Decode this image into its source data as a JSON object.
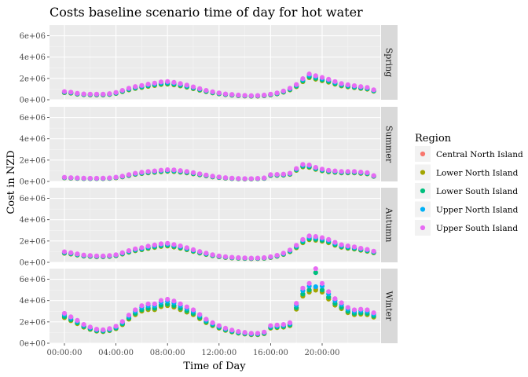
{
  "chart_data": {
    "type": "scatter",
    "title": "Costs baseline scenario time of day for hot water",
    "xlabel": "Time of Day",
    "ylabel": "Cost in NZD",
    "x_ticks": [
      "00:00:00",
      "04:00:00",
      "08:00:00",
      "12:00:00",
      "16:00:00",
      "20:00:00"
    ],
    "y_ticks": [
      "0e+00",
      "2e+06",
      "4e+06",
      "6e+06"
    ],
    "ylim": [
      0,
      7000000
    ],
    "grid": true,
    "legend": {
      "title": "Region",
      "position": "right"
    },
    "series": [
      {
        "name": "Central North Island",
        "color": "#F8766D"
      },
      {
        "name": "Lower North Island",
        "color": "#A3A500"
      },
      {
        "name": "Lower South Island",
        "color": "#00BF7D"
      },
      {
        "name": "Upper North Island",
        "color": "#00B0F6"
      },
      {
        "name": "Upper South Island",
        "color": "#E76BF3"
      }
    ],
    "facets": [
      {
        "label": "Spring",
        "values": [
          0.7,
          0.65,
          0.55,
          0.5,
          0.48,
          0.48,
          0.48,
          0.52,
          0.62,
          0.8,
          0.98,
          1.12,
          1.22,
          1.33,
          1.42,
          1.52,
          1.55,
          1.48,
          1.38,
          1.25,
          1.1,
          0.95,
          0.8,
          0.68,
          0.58,
          0.5,
          0.45,
          0.4,
          0.37,
          0.35,
          0.36,
          0.4,
          0.48,
          0.58,
          0.75,
          0.98,
          1.3,
          1.8,
          2.2,
          2.05,
          1.9,
          1.75,
          1.55,
          1.38,
          1.28,
          1.2,
          1.12,
          1.05,
          0.85
        ]
      },
      {
        "label": "Summer",
        "values": [
          0.35,
          0.32,
          0.3,
          0.28,
          0.27,
          0.27,
          0.28,
          0.3,
          0.36,
          0.45,
          0.58,
          0.7,
          0.78,
          0.85,
          0.9,
          0.96,
          1.0,
          0.98,
          0.92,
          0.85,
          0.75,
          0.65,
          0.55,
          0.45,
          0.38,
          0.32,
          0.28,
          0.25,
          0.24,
          0.24,
          0.26,
          0.3,
          0.58,
          0.6,
          0.62,
          0.7,
          1.1,
          1.45,
          1.4,
          1.2,
          1.05,
          0.95,
          0.9,
          0.85,
          0.85,
          0.85,
          0.8,
          0.75,
          0.5
        ]
      },
      {
        "label": "Autumn",
        "values": [
          0.9,
          0.82,
          0.72,
          0.62,
          0.58,
          0.55,
          0.55,
          0.58,
          0.65,
          0.82,
          1.0,
          1.15,
          1.25,
          1.38,
          1.48,
          1.58,
          1.62,
          1.52,
          1.4,
          1.25,
          1.08,
          0.92,
          0.78,
          0.65,
          0.55,
          0.48,
          0.43,
          0.4,
          0.38,
          0.36,
          0.37,
          0.4,
          0.48,
          0.6,
          0.78,
          1.05,
          1.45,
          1.95,
          2.25,
          2.2,
          2.1,
          1.95,
          1.7,
          1.5,
          1.4,
          1.32,
          1.2,
          1.1,
          0.95
        ]
      },
      {
        "label": "Winter",
        "values": [
          2.55,
          2.25,
          1.95,
          1.6,
          1.38,
          1.2,
          1.15,
          1.25,
          1.45,
          1.85,
          2.4,
          2.85,
          3.2,
          3.35,
          3.35,
          3.65,
          3.75,
          3.6,
          3.35,
          3.1,
          2.85,
          2.45,
          2.05,
          1.75,
          1.5,
          1.28,
          1.12,
          1.0,
          0.92,
          0.85,
          0.85,
          0.95,
          1.5,
          1.55,
          1.6,
          1.75,
          3.4,
          4.7,
          5.1,
          5.3,
          5.1,
          4.4,
          3.8,
          3.45,
          3.05,
          2.85,
          2.9,
          2.85,
          2.6
        ]
      }
    ]
  }
}
